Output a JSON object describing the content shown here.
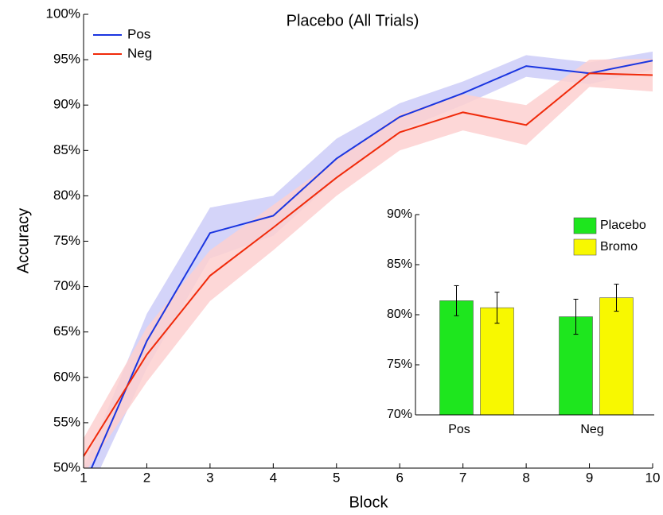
{
  "chart_data": [
    {
      "type": "line",
      "title": "Placebo (All Trials)",
      "xlabel": "Block",
      "ylabel": "Accuracy",
      "x": [
        1,
        2,
        3,
        4,
        5,
        6,
        7,
        8,
        9,
        10
      ],
      "xlim": [
        1,
        10
      ],
      "xticks": [
        1,
        2,
        3,
        4,
        5,
        6,
        7,
        8,
        9,
        10
      ],
      "ylim": [
        50,
        100
      ],
      "yticks": [
        {
          "value": 50,
          "label": "50%"
        },
        {
          "value": 55,
          "label": "55%"
        },
        {
          "value": 60,
          "label": "60%"
        },
        {
          "value": 65,
          "label": "65%"
        },
        {
          "value": 70,
          "label": "70%"
        },
        {
          "value": 75,
          "label": "75%"
        },
        {
          "value": 80,
          "label": "80%"
        },
        {
          "value": 85,
          "label": "85%"
        },
        {
          "value": 90,
          "label": "90%"
        },
        {
          "value": 95,
          "label": "95%"
        },
        {
          "value": 100,
          "label": "100%"
        }
      ],
      "legend": "top-left",
      "series": [
        {
          "name": "Pos",
          "color": "#1a35e0",
          "band_color": "#ccccf8",
          "values": [
            48,
            64,
            75.9,
            77.8,
            84.1,
            88.7,
            91.3,
            94.3,
            93.5,
            94.9
          ],
          "errors": [
            2,
            3,
            2.8,
            2.2,
            2.2,
            1.5,
            1.3,
            1.2,
            1.2,
            1
          ]
        },
        {
          "name": "Neg",
          "color": "#f02a0a",
          "band_color": "#fdd0d0",
          "values": [
            51.3,
            62.5,
            71.2,
            76.5,
            82,
            87,
            89.2,
            87.8,
            93.5,
            93.3
          ],
          "errors": [
            2,
            3,
            2.8,
            2.5,
            2,
            2,
            2,
            2.2,
            1.5,
            1.8
          ]
        }
      ]
    },
    {
      "type": "bar",
      "categories": [
        "Pos",
        "Neg"
      ],
      "ylim": [
        70,
        90
      ],
      "yticks": [
        {
          "value": 70,
          "label": "70%"
        },
        {
          "value": 75,
          "label": "75%"
        },
        {
          "value": 80,
          "label": "80%"
        },
        {
          "value": 85,
          "label": "85%"
        },
        {
          "value": 90,
          "label": "90%"
        }
      ],
      "legend": "top-right",
      "series": [
        {
          "name": "Placebo",
          "color": "#1ee61e",
          "values": [
            81.4,
            79.8
          ],
          "errors": [
            1.5,
            1.75
          ]
        },
        {
          "name": "Bromo",
          "color": "#f8f800",
          "values": [
            80.7,
            81.7
          ],
          "errors": [
            1.55,
            1.35
          ]
        }
      ]
    }
  ]
}
